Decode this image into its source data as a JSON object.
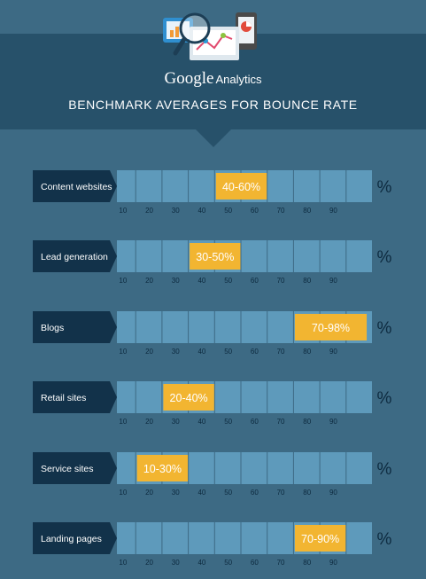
{
  "header": {
    "brand_google": "Google",
    "brand_analytics": "Analytics",
    "title": "BENCHMARK AVERAGES FOR BOUNCE RATE"
  },
  "colors": {
    "background": "#3d6a84",
    "header": "#27516a",
    "label_box": "#12324a",
    "bar_cell": "#5e9abb",
    "highlight": "#f2b531",
    "text": "#ffffff",
    "tick_text": "#0d2a3f"
  },
  "chart_data": {
    "type": "bar",
    "title": "BENCHMARK AVERAGES FOR BOUNCE RATE",
    "unit": "%",
    "xlim": [
      0,
      100
    ],
    "ticks": [
      10,
      20,
      30,
      40,
      50,
      60,
      70,
      80,
      90
    ],
    "categories": [
      "Content websites",
      "Lead generation",
      "Blogs",
      "Retail sites",
      "Service sites",
      "Landing pages"
    ],
    "ranges": [
      {
        "category": "Content websites",
        "low": 40,
        "high": 60,
        "label": "40-60%"
      },
      {
        "category": "Lead generation",
        "low": 30,
        "high": 50,
        "label": "30-50%"
      },
      {
        "category": "Blogs",
        "low": 70,
        "high": 98,
        "label": "70-98%"
      },
      {
        "category": "Retail sites",
        "low": 20,
        "high": 40,
        "label": "20-40%"
      },
      {
        "category": "Service sites",
        "low": 10,
        "high": 30,
        "label": "10-30%"
      },
      {
        "category": "Landing pages",
        "low": 70,
        "high": 90,
        "label": "70-90%"
      }
    ]
  }
}
